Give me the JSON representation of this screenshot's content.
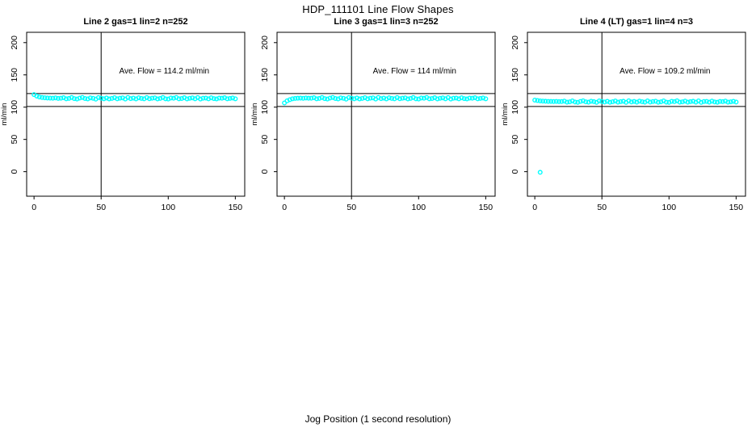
{
  "page": {
    "title": "HDP_111101  Line Flow Shapes",
    "xlabel": "Jog Position (1 second resolution)"
  },
  "chart_data": [
    {
      "type": "scatter",
      "title": "Line 2 gas=1 lin=2 n=252",
      "annotation": "Ave. Flow =  114.2  ml/min",
      "ave_flow_ml_min": 114.2,
      "ylabel": "ml/min",
      "x_ticks": [
        0,
        50,
        100,
        150
      ],
      "y_ticks": [
        0,
        50,
        100,
        150,
        200
      ],
      "xlim": [
        -5.5,
        157
      ],
      "ylim": [
        -38,
        216
      ],
      "hlines": [
        121,
        101
      ],
      "vline": 50,
      "point_color": "#00FFFF",
      "annotation_xy": [
        97,
        152
      ],
      "x_start": 0,
      "x_step": 2,
      "y_values": [
        119.5,
        117.2,
        115.8,
        114.9,
        114.5,
        114.2,
        114.0,
        113.9,
        114.3,
        113.6,
        113.9,
        114.6,
        112.9,
        113.5,
        114.9,
        113.2,
        112.6,
        114.1,
        115.0,
        113.4,
        112.8,
        114.4,
        113.7,
        112.5,
        114.8,
        113.9,
        113.0,
        114.2,
        112.7,
        113.6,
        114.7,
        112.9,
        113.8,
        114.3,
        112.6,
        115.0,
        113.3,
        114.0,
        112.8,
        114.5,
        113.6,
        112.9,
        114.8,
        113.1,
        113.9,
        114.4,
        112.7,
        113.5,
        114.9,
        113.0,
        112.6,
        114.2,
        113.8,
        115.0,
        112.9,
        113.4,
        114.6,
        112.8,
        113.7,
        114.3,
        113.0,
        114.8,
        112.6,
        113.9,
        114.1,
        112.9,
        114.5,
        113.3,
        112.7,
        114.0,
        113.8,
        114.6,
        112.9,
        113.5,
        114.2,
        113.0
      ],
      "extra_points": []
    },
    {
      "type": "scatter",
      "title": "Line 3 gas=1 lin=3 n=252",
      "annotation": "Ave. Flow =  114  ml/min",
      "ave_flow_ml_min": 114,
      "ylabel": "ml/min",
      "x_ticks": [
        0,
        50,
        100,
        150
      ],
      "y_ticks": [
        0,
        50,
        100,
        150,
        200
      ],
      "xlim": [
        -5.5,
        157
      ],
      "ylim": [
        -38,
        216
      ],
      "hlines": [
        121,
        101
      ],
      "vline": 50,
      "point_color": "#00FFFF",
      "annotation_xy": [
        97,
        152
      ],
      "x_start": 0,
      "x_step": 2,
      "y_values": [
        106.5,
        109.8,
        111.6,
        112.9,
        113.5,
        113.8,
        114.0,
        113.7,
        114.2,
        113.8,
        113.9,
        114.6,
        112.9,
        113.5,
        114.9,
        113.2,
        112.6,
        114.1,
        115.0,
        113.4,
        112.8,
        114.4,
        113.7,
        112.5,
        114.8,
        113.9,
        113.0,
        114.2,
        112.7,
        113.6,
        114.7,
        112.9,
        113.8,
        114.3,
        112.6,
        115.0,
        113.3,
        114.0,
        112.8,
        114.5,
        113.6,
        112.9,
        114.8,
        113.1,
        113.9,
        114.4,
        112.7,
        113.5,
        114.9,
        113.0,
        112.6,
        114.2,
        113.8,
        115.0,
        112.9,
        113.4,
        114.6,
        112.8,
        113.7,
        114.3,
        113.0,
        114.8,
        112.6,
        113.9,
        114.1,
        112.9,
        114.5,
        113.3,
        112.7,
        114.0,
        113.8,
        114.6,
        112.9,
        113.5,
        114.2,
        113.0
      ],
      "extra_points": []
    },
    {
      "type": "scatter",
      "title": "Line 4 (LT) gas=1 lin=4 n=3",
      "annotation": "Ave. Flow =  109.2  ml/min",
      "ave_flow_ml_min": 109.2,
      "ylabel": "ml/min",
      "x_ticks": [
        0,
        50,
        100,
        150
      ],
      "y_ticks": [
        0,
        50,
        100,
        150,
        200
      ],
      "xlim": [
        -5.5,
        157
      ],
      "ylim": [
        -38,
        216
      ],
      "hlines": [
        121,
        101
      ],
      "vline": 50,
      "point_color": "#00FFFF",
      "annotation_xy": [
        97,
        152
      ],
      "x_start": 0,
      "x_step": 2,
      "y_values": [
        110.9,
        110.3,
        109.7,
        109.3,
        109.1,
        108.9,
        108.8,
        108.7,
        108.9,
        108.6,
        108.7,
        109.4,
        107.8,
        108.3,
        109.7,
        108.0,
        107.5,
        108.9,
        109.8,
        108.2,
        107.7,
        109.2,
        108.5,
        107.4,
        109.6,
        108.7,
        107.9,
        109.0,
        107.6,
        108.4,
        109.5,
        107.8,
        108.6,
        109.1,
        107.5,
        109.8,
        108.1,
        108.8,
        107.7,
        109.3,
        108.4,
        107.8,
        109.6,
        107.9,
        108.7,
        109.2,
        107.6,
        108.3,
        109.7,
        107.8,
        107.5,
        109.0,
        108.6,
        109.8,
        107.8,
        108.2,
        109.4,
        107.7,
        108.5,
        109.1,
        107.8,
        109.6,
        107.5,
        108.7,
        108.9,
        107.8,
        109.3,
        108.1,
        107.6,
        108.8,
        108.6,
        109.4,
        107.8,
        108.3,
        109.0,
        107.9
      ],
      "extra_points": [
        [
          4,
          -1
        ]
      ]
    }
  ]
}
